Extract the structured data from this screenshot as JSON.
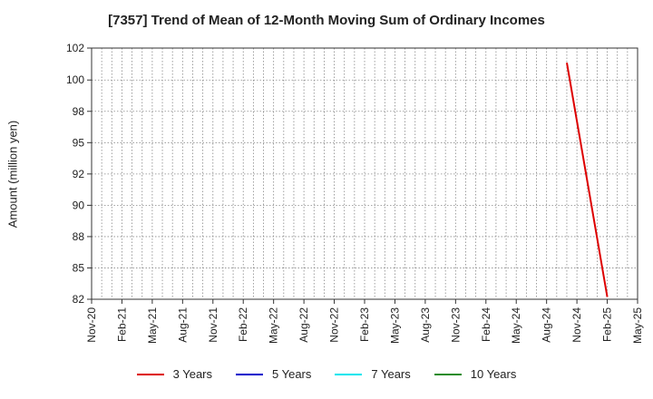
{
  "chart_data": {
    "type": "line",
    "title": "[7357]  Trend of Mean of 12-Month Moving Sum of Ordinary Incomes",
    "ylabel": "Amount (million yen)",
    "xlabel": "",
    "ylim": [
      82.42,
      102.47
    ],
    "y_ticks": [
      {
        "value": 82.42,
        "label": "82"
      },
      {
        "value": 84.92,
        "label": "85"
      },
      {
        "value": 87.42,
        "label": "88"
      },
      {
        "value": 89.92,
        "label": "90"
      },
      {
        "value": 92.42,
        "label": "92"
      },
      {
        "value": 94.92,
        "label": "95"
      },
      {
        "value": 97.42,
        "label": "98"
      },
      {
        "value": 99.92,
        "label": "100"
      },
      {
        "value": 102.47,
        "label": "102"
      }
    ],
    "x_tick_labels": [
      "Nov-20",
      "Feb-21",
      "May-21",
      "Aug-21",
      "Nov-21",
      "Feb-22",
      "May-22",
      "Aug-22",
      "Nov-22",
      "Feb-23",
      "May-23",
      "Aug-23",
      "Nov-23",
      "Feb-24",
      "May-24",
      "Aug-24",
      "Nov-24",
      "Feb-25",
      "May-25"
    ],
    "x_range": [
      "2020-11",
      "2025-05"
    ],
    "grid": true,
    "legend_position": "bottom",
    "series": [
      {
        "name": "3 Years",
        "color": "#dd0000",
        "points": [
          [
            "2024-10",
            101.3
          ],
          [
            "2025-02",
            82.6
          ]
        ]
      },
      {
        "name": "5 Years",
        "color": "#0000cc",
        "points": []
      },
      {
        "name": "7 Years",
        "color": "#00e5ee",
        "points": []
      },
      {
        "name": "10 Years",
        "color": "#228b22",
        "points": []
      }
    ]
  }
}
